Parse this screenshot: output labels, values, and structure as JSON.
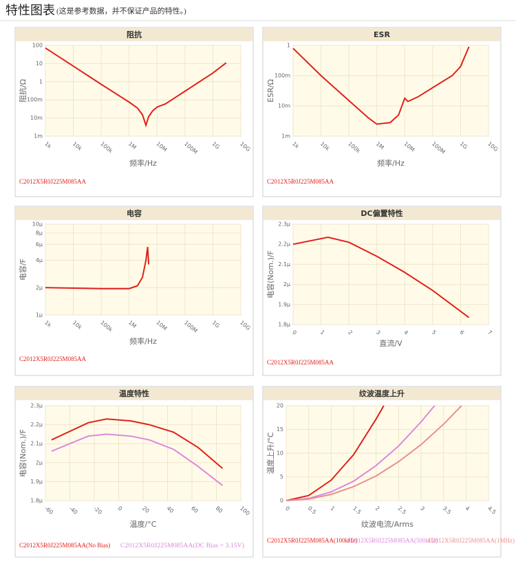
{
  "header": {
    "title": "特性图表",
    "note": "(这是参考数据，并不保证产品的特性。)"
  },
  "chart_data": [
    {
      "type": "line",
      "title": "阻抗",
      "xlabel": "频率/Hz",
      "ylabel": "阻抗/Ω",
      "xscale": "log",
      "yscale": "log",
      "xlim": [
        1000,
        10000000000
      ],
      "ylim": [
        0.001,
        100
      ],
      "xticks": [
        {
          "value": 1000,
          "label": "1k"
        },
        {
          "value": 10000,
          "label": "10k"
        },
        {
          "value": 100000,
          "label": "100k"
        },
        {
          "value": 1000000,
          "label": "1M"
        },
        {
          "value": 10000000,
          "label": "10M"
        },
        {
          "value": 100000000,
          "label": "100M"
        },
        {
          "value": 1000000000,
          "label": "1G"
        },
        {
          "value": 10000000000,
          "label": "10G"
        }
      ],
      "yticks": [
        {
          "value": 0.001,
          "label": "1m"
        },
        {
          "value": 0.01,
          "label": "10m"
        },
        {
          "value": 0.1,
          "label": "100m"
        },
        1,
        10,
        100
      ],
      "grid": true,
      "series": [
        {
          "name": "C2012X5R0J225M085AA",
          "color": "#e0201a",
          "x": [
            1000,
            10000,
            100000,
            1000000,
            2000000,
            3000000,
            4000000,
            5000000,
            7000000,
            10000000,
            20000000,
            100000000,
            1000000000,
            3000000000
          ],
          "values": [
            72,
            7.2,
            0.72,
            0.075,
            0.035,
            0.015,
            0.004,
            0.012,
            0.025,
            0.04,
            0.06,
            0.3,
            3,
            11
          ]
        }
      ]
    },
    {
      "type": "line",
      "title": "ESR",
      "xlabel": "频率/Hz",
      "ylabel": "ESR/Ω",
      "xscale": "log",
      "yscale": "log",
      "xlim": [
        1000,
        10000000000
      ],
      "ylim": [
        0.001,
        1
      ],
      "xticks": [
        {
          "value": 1000,
          "label": "1k"
        },
        {
          "value": 10000,
          "label": "10k"
        },
        {
          "value": 100000,
          "label": "100k"
        },
        {
          "value": 1000000,
          "label": "1M"
        },
        {
          "value": 10000000,
          "label": "10M"
        },
        {
          "value": 100000000,
          "label": "100M"
        },
        {
          "value": 1000000000,
          "label": "1G"
        },
        {
          "value": 10000000000,
          "label": "10G"
        }
      ],
      "yticks": [
        {
          "value": 0.001,
          "label": "1m"
        },
        {
          "value": 0.01,
          "label": "10m"
        },
        {
          "value": 0.1,
          "label": "100m"
        },
        1
      ],
      "grid": true,
      "series": [
        {
          "name": "C2012X5R0J225M085AA",
          "color": "#e0201a",
          "x": [
            1000,
            10000,
            100000,
            500000,
            1000000,
            3000000,
            6000000,
            10000000,
            13000000,
            30000000,
            100000000,
            500000000,
            1000000000,
            2000000000
          ],
          "values": [
            0.8,
            0.1,
            0.015,
            0.004,
            0.0025,
            0.0028,
            0.005,
            0.018,
            0.014,
            0.02,
            0.04,
            0.1,
            0.2,
            0.9
          ]
        }
      ]
    },
    {
      "type": "line",
      "title": "电容",
      "xlabel": "频率/Hz",
      "ylabel": "电容/F",
      "xscale": "log",
      "yscale": "log",
      "xlim": [
        1000,
        10000000000
      ],
      "ylim": [
        1,
        10
      ],
      "xticks": [
        {
          "value": 1000,
          "label": "1k"
        },
        {
          "value": 10000,
          "label": "10k"
        },
        {
          "value": 100000,
          "label": "100k"
        },
        {
          "value": 1000000,
          "label": "1M"
        },
        {
          "value": 10000000,
          "label": "10M"
        },
        {
          "value": 100000000,
          "label": "100M"
        },
        {
          "value": 1000000000,
          "label": "1G"
        },
        {
          "value": 10000000000,
          "label": "10G"
        }
      ],
      "yticks": [
        {
          "value": 1,
          "label": "1μ"
        },
        {
          "value": 2,
          "label": "2μ"
        },
        {
          "value": 4,
          "label": "4μ"
        },
        {
          "value": 6,
          "label": "6μ"
        },
        {
          "value": 8,
          "label": "8μ"
        },
        {
          "value": 10,
          "label": "10μ"
        }
      ],
      "grid": true,
      "series": [
        {
          "name": "C2012X5R0J225M085AA",
          "color": "#e0201a",
          "x": [
            1000,
            100000,
            1000000,
            2000000,
            3000000,
            4000000,
            4600000,
            5000000
          ],
          "values": [
            2.0,
            1.95,
            1.95,
            2.1,
            2.6,
            4,
            5.6,
            3.6
          ]
        }
      ]
    },
    {
      "type": "line",
      "title": "DC偏置特性",
      "xlabel": "直流/V",
      "ylabel": "电容(Nom.)/F",
      "xlim": [
        0,
        7
      ],
      "ylim": [
        1.8,
        2.3
      ],
      "xticks": [
        0,
        1,
        2,
        3,
        4,
        5,
        6,
        7
      ],
      "yticks": [
        {
          "value": 1.8,
          "label": "1.8μ"
        },
        {
          "value": 1.9,
          "label": "1.9μ"
        },
        {
          "value": 2.0,
          "label": "2μ"
        },
        {
          "value": 2.1,
          "label": "2.1μ"
        },
        {
          "value": 2.2,
          "label": "2.2μ"
        },
        {
          "value": 2.3,
          "label": "2.3μ"
        }
      ],
      "grid": true,
      "series": [
        {
          "name": "C2012X5R0J225M085AA",
          "color": "#e0201a",
          "x": [
            0,
            1.25,
            2,
            3,
            4,
            5,
            6.3
          ],
          "values": [
            2.2,
            2.235,
            2.21,
            2.14,
            2.06,
            1.97,
            1.835
          ]
        }
      ]
    },
    {
      "type": "line",
      "title": "温度特性",
      "xlabel": "温度/°C",
      "ylabel": "电容(Nom.)/F",
      "xlim": [
        -60,
        100
      ],
      "ylim": [
        1.8,
        2.3
      ],
      "xticks": [
        -60,
        -40,
        -20,
        0,
        20,
        40,
        60,
        80,
        100
      ],
      "yticks": [
        {
          "value": 1.8,
          "label": "1.8μ"
        },
        {
          "value": 1.9,
          "label": "1.9μ"
        },
        {
          "value": 2.0,
          "label": "2μ"
        },
        {
          "value": 2.1,
          "label": "2.1μ"
        },
        {
          "value": 2.2,
          "label": "2.2μ"
        },
        {
          "value": 2.3,
          "label": "2.3μ"
        }
      ],
      "grid": true,
      "series": [
        {
          "name": "C2012X5R0J225M085AA(No Bias)",
          "color": "#e0201a",
          "x": [
            -55,
            -25,
            -10,
            10,
            25,
            45,
            65,
            85
          ],
          "values": [
            2.12,
            2.21,
            2.23,
            2.22,
            2.2,
            2.16,
            2.08,
            1.97
          ]
        },
        {
          "name": "C2012X5R0J225M085AA(DC Bias = 3.15V)",
          "color": "#dd88dd",
          "x": [
            -55,
            -25,
            -10,
            10,
            25,
            45,
            65,
            85
          ],
          "values": [
            2.06,
            2.14,
            2.15,
            2.14,
            2.12,
            2.07,
            1.98,
            1.88
          ]
        }
      ]
    },
    {
      "type": "line",
      "title": "纹波温度上升",
      "xlabel": "纹波电流/Arms",
      "ylabel": "温度上升/°C",
      "xlim": [
        0,
        4.5
      ],
      "ylim": [
        0,
        20
      ],
      "xticks": [
        0,
        0.5,
        1,
        1.5,
        2,
        2.5,
        3,
        3.5,
        4,
        4.5
      ],
      "yticks": [
        0,
        5,
        10,
        15,
        20
      ],
      "grid": true,
      "series": [
        {
          "name": "C2012X5R0J225M085AA(100kHz)",
          "color": "#e0201a",
          "x": [
            0,
            0.5,
            1,
            1.5,
            2,
            2.17
          ],
          "values": [
            0,
            1.07,
            4.3,
            9.7,
            17.2,
            20
          ]
        },
        {
          "name": "C2012X5R0J225M085AA(500kHz)",
          "color": "#dd88dd",
          "x": [
            0,
            0.5,
            1,
            1.5,
            2,
            2.5,
            3,
            3.3
          ],
          "values": [
            0,
            0.46,
            1.84,
            4.1,
            7.4,
            11.5,
            16.6,
            20
          ]
        },
        {
          "name": "C2012X5R0J225M085AA(1MHz)",
          "color": "#e89090",
          "x": [
            0,
            0.5,
            1,
            1.5,
            2,
            2.5,
            3,
            3.5,
            3.9
          ],
          "values": [
            0,
            0.33,
            1.31,
            2.95,
            5.2,
            8.2,
            11.8,
            16.1,
            20
          ]
        }
      ]
    }
  ]
}
